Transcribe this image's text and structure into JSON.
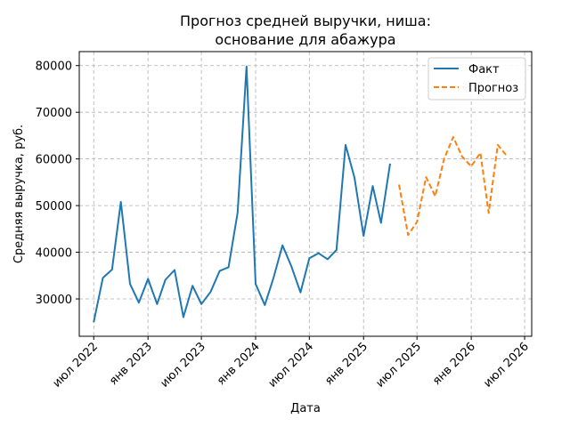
{
  "chart_data": {
    "type": "line",
    "title": [
      "Прогноз средней выручки, ниша:",
      "основание для абажура"
    ],
    "xlabel": "Дата",
    "ylabel": "Средняя выручка, руб.",
    "ylim": [
      22000,
      83000
    ],
    "yticks": [
      30000,
      40000,
      50000,
      60000,
      70000,
      80000
    ],
    "xlim": [
      "2022-05-13",
      "2026-07-25"
    ],
    "xticks": [
      {
        "date": "2022-07-01",
        "label": "июл 2022"
      },
      {
        "date": "2023-01-01",
        "label": "янв 2023"
      },
      {
        "date": "2023-07-01",
        "label": "июл 2023"
      },
      {
        "date": "2024-01-01",
        "label": "янв 2024"
      },
      {
        "date": "2024-07-01",
        "label": "июл 2024"
      },
      {
        "date": "2025-01-01",
        "label": "янв 2025"
      },
      {
        "date": "2025-07-01",
        "label": "июл 2025"
      },
      {
        "date": "2026-01-01",
        "label": "янв 2026"
      },
      {
        "date": "2026-07-01",
        "label": "июл 2026"
      }
    ],
    "grid": true,
    "legend": "top-right",
    "series": [
      {
        "name": "Факт",
        "color": "#1f77b4",
        "style": "solid",
        "x": [
          "2022-07-01",
          "2022-08-01",
          "2022-09-01",
          "2022-10-01",
          "2022-11-01",
          "2022-12-01",
          "2023-01-01",
          "2023-02-01",
          "2023-03-01",
          "2023-04-01",
          "2023-05-01",
          "2023-06-01",
          "2023-07-01",
          "2023-08-01",
          "2023-09-01",
          "2023-10-01",
          "2023-11-01",
          "2023-12-01",
          "2024-01-01",
          "2024-02-01",
          "2024-03-01",
          "2024-04-01",
          "2024-05-01",
          "2024-06-01",
          "2024-07-01",
          "2024-08-01",
          "2024-09-01",
          "2024-10-01",
          "2024-11-01",
          "2024-12-01",
          "2025-01-01",
          "2025-02-01",
          "2025-03-01",
          "2025-04-01"
        ],
        "values": [
          25000,
          34500,
          36300,
          50800,
          33200,
          29200,
          34300,
          28900,
          34100,
          36200,
          26100,
          32800,
          28900,
          31500,
          36000,
          36800,
          48500,
          79800,
          33200,
          28700,
          34400,
          41500,
          37000,
          31400,
          38700,
          39800,
          38500,
          40500,
          63000,
          56000,
          43500,
          54200,
          46300,
          59000
        ]
      },
      {
        "name": "Прогноз",
        "color": "#ff7f0e",
        "style": "dashed",
        "x": [
          "2025-05-01",
          "2025-06-01",
          "2025-07-01",
          "2025-08-01",
          "2025-09-01",
          "2025-10-01",
          "2025-11-01",
          "2025-12-01",
          "2026-01-01",
          "2026-02-01",
          "2026-03-01",
          "2026-04-01",
          "2026-05-01",
          "2026-06-01"
        ],
        "values": [
          54500,
          43700,
          46500,
          56100,
          52000,
          60000,
          64700,
          60500,
          58400,
          61300,
          48400,
          63000,
          60700,
          null
        ]
      }
    ]
  }
}
